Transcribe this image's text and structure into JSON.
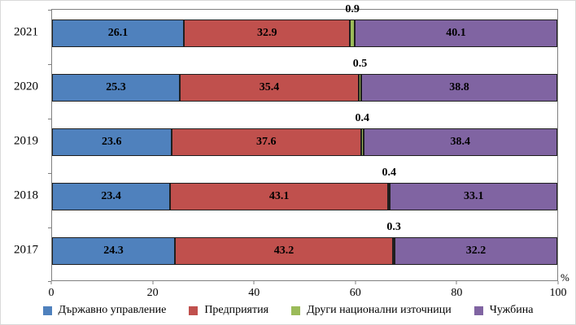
{
  "chart_data": {
    "type": "bar",
    "orientation": "horizontal",
    "stacked": true,
    "title": "",
    "categories": [
      "2021",
      "2020",
      "2019",
      "2018",
      "2017"
    ],
    "series": [
      {
        "name": "Държавно управление",
        "color": "#4F81BD",
        "values": [
          26.1,
          25.3,
          23.6,
          23.4,
          24.3
        ]
      },
      {
        "name": "Предприятия",
        "color": "#C0504D",
        "values": [
          32.9,
          35.4,
          37.6,
          43.1,
          43.2
        ]
      },
      {
        "name": "Други национални източници",
        "color": "#9BBB59",
        "values": [
          0.9,
          0.5,
          0.4,
          0.4,
          0.3
        ]
      },
      {
        "name": "Чужбина",
        "color": "#8064A2",
        "values": [
          40.1,
          38.8,
          38.4,
          33.1,
          32.2
        ]
      }
    ],
    "xlim": [
      0,
      100
    ],
    "x_ticks": [
      0,
      20,
      40,
      60,
      80,
      100
    ],
    "x_unit_label": "%",
    "grid": false,
    "legend_position": "bottom",
    "value_labels": "inside segments; values under 2% shown above bar"
  }
}
